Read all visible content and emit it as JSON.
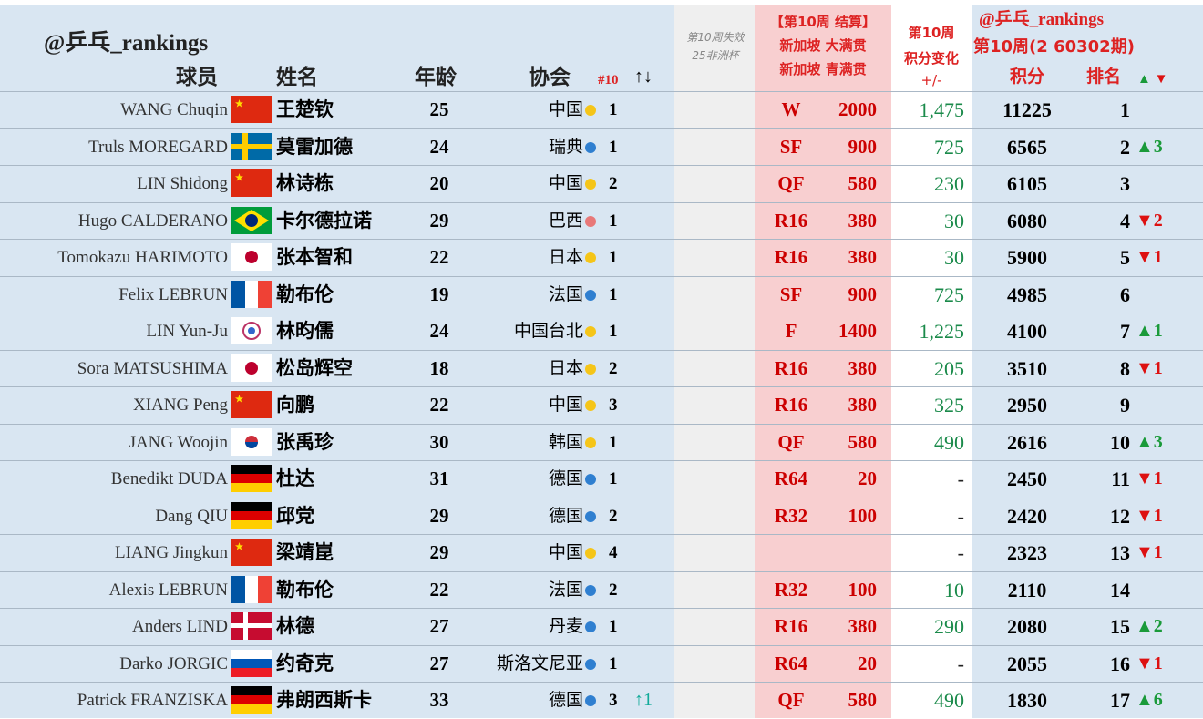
{
  "brand": "@乒乓_rankings",
  "headers": {
    "player": "球员",
    "name": "姓名",
    "age": "年龄",
    "assoc": "协会",
    "week_rank": "#10",
    "move": "↑↓",
    "lost": "第10周失效 25非洲杯",
    "result_title": "【第10周 结算】",
    "result_line1": "新加坡 大满贯",
    "result_line2": "新加坡 青满贯",
    "change_title": "第10周",
    "change_sub": "积分变化",
    "change_sign": "+/-",
    "brand2": "@乒乓_rankings",
    "period": "第10周(2 60302期)",
    "points": "积分",
    "rank": "排名",
    "up_down": "▲ ▼"
  },
  "colors": {
    "yellow": "#f5c518",
    "blue": "#2f7fd0",
    "pink": "#e87878",
    "up": "#1a9a3a",
    "down": "#d11111"
  },
  "rows": [
    {
      "en": "WANG Chuqin",
      "flag": "china",
      "cn": "王楚钦",
      "age": "25",
      "assoc": "中国",
      "dot": "yellow",
      "r10": "1",
      "move": "",
      "res": "W",
      "rpt": "2000",
      "chg": "1,475",
      "pts": "11225",
      "rank": "1",
      "rc": ""
    },
    {
      "en": "Truls MOREGARD",
      "flag": "sweden",
      "cn": "莫雷加德",
      "age": "24",
      "assoc": "瑞典",
      "dot": "blue",
      "r10": "1",
      "move": "",
      "res": "SF",
      "rpt": "900",
      "chg": "725",
      "pts": "6565",
      "rank": "2",
      "rc": "▲3"
    },
    {
      "en": "LIN Shidong",
      "flag": "china",
      "cn": "林诗栋",
      "age": "20",
      "assoc": "中国",
      "dot": "yellow",
      "r10": "2",
      "move": "",
      "res": "QF",
      "rpt": "580",
      "chg": "230",
      "pts": "6105",
      "rank": "3",
      "rc": ""
    },
    {
      "en": "Hugo CALDERANO",
      "flag": "brazil",
      "cn": "卡尔德拉诺",
      "age": "29",
      "assoc": "巴西",
      "dot": "pink",
      "r10": "1",
      "move": "",
      "res": "R16",
      "rpt": "380",
      "chg": "30",
      "pts": "6080",
      "rank": "4",
      "rc": "▼2"
    },
    {
      "en": "Tomokazu HARIMOTO",
      "flag": "japan",
      "cn": "张本智和",
      "age": "22",
      "assoc": "日本",
      "dot": "yellow",
      "r10": "1",
      "move": "",
      "res": "R16",
      "rpt": "380",
      "chg": "30",
      "pts": "5900",
      "rank": "5",
      "rc": "▼1"
    },
    {
      "en": "Felix LEBRUN",
      "flag": "france",
      "cn": "勒布伦",
      "age": "19",
      "assoc": "法国",
      "dot": "blue",
      "r10": "1",
      "move": "",
      "res": "SF",
      "rpt": "900",
      "chg": "725",
      "pts": "4985",
      "rank": "6",
      "rc": ""
    },
    {
      "en": "LIN Yun-Ju",
      "flag": "tpe",
      "cn": "林昀儒",
      "age": "24",
      "assoc": "中国台北",
      "dot": "yellow",
      "r10": "1",
      "move": "",
      "res": "F",
      "rpt": "1400",
      "chg": "1,225",
      "pts": "4100",
      "rank": "7",
      "rc": "▲1"
    },
    {
      "en": "Sora MATSUSHIMA",
      "flag": "japan",
      "cn": "松岛辉空",
      "age": "18",
      "assoc": "日本",
      "dot": "yellow",
      "r10": "2",
      "move": "",
      "res": "R16",
      "rpt": "380",
      "chg": "205",
      "pts": "3510",
      "rank": "8",
      "rc": "▼1"
    },
    {
      "en": "XIANG Peng",
      "flag": "china",
      "cn": "向鹏",
      "age": "22",
      "assoc": "中国",
      "dot": "yellow",
      "r10": "3",
      "move": "",
      "res": "R16",
      "rpt": "380",
      "chg": "325",
      "pts": "2950",
      "rank": "9",
      "rc": ""
    },
    {
      "en": "JANG Woojin",
      "flag": "korea",
      "cn": "张禹珍",
      "age": "30",
      "assoc": "韩国",
      "dot": "yellow",
      "r10": "1",
      "move": "",
      "res": "QF",
      "rpt": "580",
      "chg": "490",
      "pts": "2616",
      "rank": "10",
      "rc": "▲3"
    },
    {
      "en": "Benedikt DUDA",
      "flag": "germany",
      "cn": "杜达",
      "age": "31",
      "assoc": "德国",
      "dot": "blue",
      "r10": "1",
      "move": "",
      "res": "R64",
      "rpt": "20",
      "chg": "-",
      "pts": "2450",
      "rank": "11",
      "rc": "▼1"
    },
    {
      "en": "Dang QIU",
      "flag": "germany",
      "cn": "邱党",
      "age": "29",
      "assoc": "德国",
      "dot": "blue",
      "r10": "2",
      "move": "",
      "res": "R32",
      "rpt": "100",
      "chg": "-",
      "pts": "2420",
      "rank": "12",
      "rc": "▼1"
    },
    {
      "en": "LIANG Jingkun",
      "flag": "china",
      "cn": "梁靖崑",
      "age": "29",
      "assoc": "中国",
      "dot": "yellow",
      "r10": "4",
      "move": "",
      "res": "",
      "rpt": "",
      "chg": "-",
      "pts": "2323",
      "rank": "13",
      "rc": "▼1"
    },
    {
      "en": "Alexis LEBRUN",
      "flag": "france",
      "cn": "勒布伦",
      "age": "22",
      "assoc": "法国",
      "dot": "blue",
      "r10": "2",
      "move": "",
      "res": "R32",
      "rpt": "100",
      "chg": "10",
      "pts": "2110",
      "rank": "14",
      "rc": ""
    },
    {
      "en": "Anders LIND",
      "flag": "denmark",
      "cn": "林德",
      "age": "27",
      "assoc": "丹麦",
      "dot": "blue",
      "r10": "1",
      "move": "",
      "res": "R16",
      "rpt": "380",
      "chg": "290",
      "pts": "2080",
      "rank": "15",
      "rc": "▲2"
    },
    {
      "en": "Darko JORGIC",
      "flag": "slovenia",
      "cn": "约奇克",
      "age": "27",
      "assoc": "斯洛文尼亚",
      "dot": "blue",
      "r10": "1",
      "move": "",
      "res": "R64",
      "rpt": "20",
      "chg": "-",
      "pts": "2055",
      "rank": "16",
      "rc": "▼1"
    },
    {
      "en": "Patrick FRANZISKA",
      "flag": "germany",
      "cn": "弗朗西斯卡",
      "age": "33",
      "assoc": "德国",
      "dot": "blue",
      "r10": "3",
      "move": "↑1",
      "res": "QF",
      "rpt": "580",
      "chg": "490",
      "pts": "1830",
      "rank": "17",
      "rc": "▲6"
    }
  ]
}
